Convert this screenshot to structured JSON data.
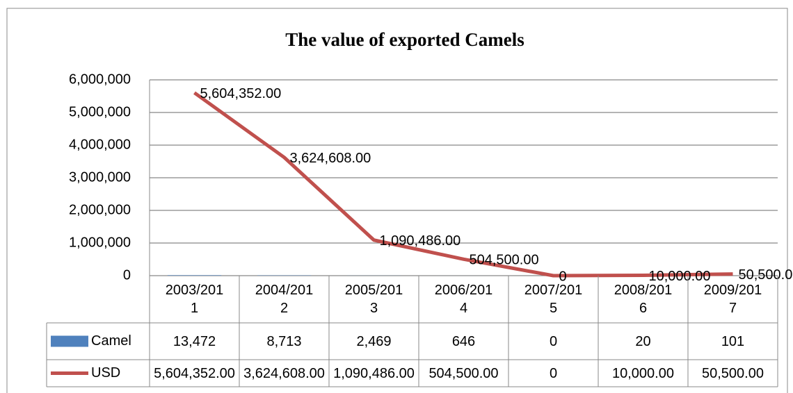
{
  "chart_data": {
    "type": "line",
    "title": "The value of exported Camels",
    "categories": [
      "2003/2011",
      "2004/2012",
      "2005/2013",
      "2006/2014",
      "2007/2015",
      "2008/2016",
      "2009/2017"
    ],
    "series": [
      {
        "name": "Camel",
        "type": "bar",
        "color": "#4f81bd",
        "values": [
          13472,
          8713,
          2469,
          646,
          0,
          20,
          101
        ],
        "value_labels": [
          "13,472",
          "8,713",
          "2,469",
          "646",
          "0",
          "20",
          "101"
        ]
      },
      {
        "name": "USD",
        "type": "line",
        "color": "#c0504d",
        "values": [
          5604352,
          3624608,
          1090486,
          504500,
          0,
          10000,
          50500
        ],
        "value_labels": [
          "5,604,352.00",
          "3,624,608.00",
          "1,090,486.00",
          "504,500.00",
          "0",
          "10,000.00",
          "50,500.00"
        ]
      }
    ],
    "ylim": [
      0,
      6000000
    ],
    "yticks": [
      0,
      {
        "value": 1000000,
        "label": "1,000,000"
      },
      {
        "value": 2000000,
        "label": "2,000,000"
      },
      {
        "value": 3000000,
        "label": "3,000,000"
      },
      {
        "value": 4000000,
        "label": "4,000,000"
      },
      {
        "value": 5000000,
        "label": "5,000,000"
      },
      {
        "value": 6000000,
        "label": "6,000,000"
      }
    ],
    "grid": true,
    "data_table": true
  }
}
